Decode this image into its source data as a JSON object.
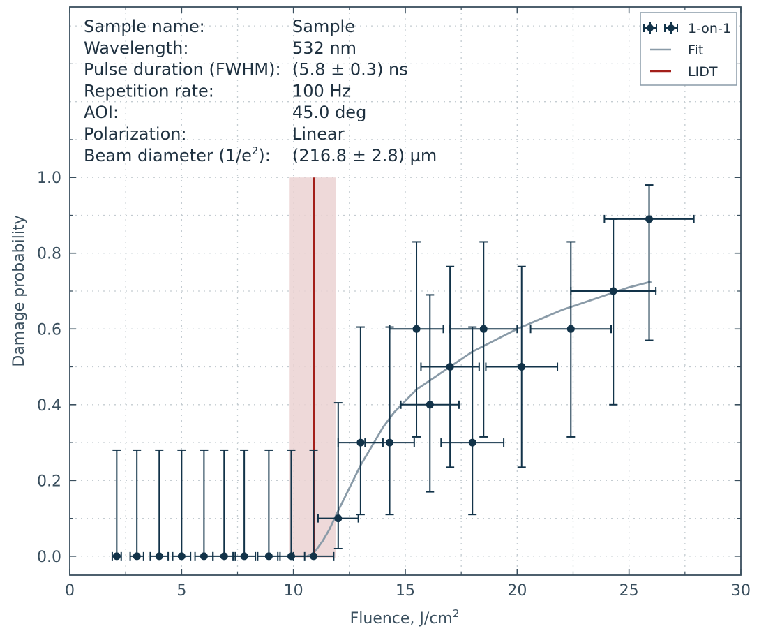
{
  "chart_data": {
    "type": "scatter",
    "xlabel": "Fluence, J/cm",
    "xlabel_sup": "2",
    "ylabel": "Damage probability",
    "xlim": [
      0,
      30
    ],
    "ylim": [
      -0.05,
      1.45
    ],
    "x_ticks": [
      0,
      5,
      10,
      15,
      20,
      25,
      30
    ],
    "y_ticks": [
      0.0,
      0.2,
      0.4,
      0.6,
      0.8,
      1.0
    ],
    "y_tick_labels": [
      "0.0",
      "0.2",
      "0.4",
      "0.6",
      "0.8",
      "1.0"
    ],
    "grid": true,
    "legend_position": "top-right",
    "colors": {
      "data": "#123349",
      "fit": "#8a9ba8",
      "lidt": "#a31f1a",
      "band": "#ebd2d2",
      "grid": "#c4ccd1",
      "axis": "#3a4f5e"
    },
    "info": [
      {
        "label": "Sample name:",
        "value": "Sample"
      },
      {
        "label": "Wavelength:",
        "value": "532 nm"
      },
      {
        "label": "Pulse duration (FWHM):",
        "value": "(5.8 ± 0.3) ns"
      },
      {
        "label": "Repetition rate:",
        "value": "100 Hz"
      },
      {
        "label": "AOI:",
        "value": "45.0 deg"
      },
      {
        "label": "Polarization:",
        "value": "Linear"
      },
      {
        "label": "Beam diameter (1/e",
        "label_sup": "2",
        "label_tail": "):",
        "value": "(216.8 ± 2.8) µm"
      }
    ],
    "legend": [
      {
        "name": "1-on-1",
        "kind": "errorbar"
      },
      {
        "name": "Fit",
        "kind": "line"
      },
      {
        "name": "LIDT",
        "kind": "line"
      }
    ],
    "lidt": {
      "value": 10.9,
      "band": [
        9.8,
        11.9
      ]
    },
    "fit": {
      "x": [
        10.6,
        10.8,
        11.0,
        11.3,
        11.6,
        12.0,
        12.5,
        13.0,
        13.5,
        14.0,
        14.5,
        15.0,
        15.5,
        16.0,
        16.5,
        17.0,
        18.0,
        19.0,
        20.0,
        21.0,
        22.0,
        23.0,
        24.0,
        25.0,
        26.0
      ],
      "y": [
        0.0,
        0.005,
        0.015,
        0.04,
        0.07,
        0.12,
        0.18,
        0.24,
        0.29,
        0.34,
        0.38,
        0.41,
        0.44,
        0.46,
        0.48,
        0.5,
        0.54,
        0.57,
        0.6,
        0.625,
        0.65,
        0.67,
        0.69,
        0.71,
        0.725
      ]
    },
    "series": [
      {
        "name": "1-on-1",
        "points": [
          {
            "x": 2.1,
            "y": 0.0,
            "xerr": 0.2,
            "yerr_low": 0.0,
            "yerr_high": 0.28
          },
          {
            "x": 3.0,
            "y": 0.0,
            "xerr": 0.3,
            "yerr_low": 0.0,
            "yerr_high": 0.28
          },
          {
            "x": 4.0,
            "y": 0.0,
            "xerr": 0.4,
            "yerr_low": 0.0,
            "yerr_high": 0.28
          },
          {
            "x": 5.0,
            "y": 0.0,
            "xerr": 0.4,
            "yerr_low": 0.0,
            "yerr_high": 0.28
          },
          {
            "x": 6.0,
            "y": 0.0,
            "xerr": 0.4,
            "yerr_low": 0.0,
            "yerr_high": 0.28
          },
          {
            "x": 6.9,
            "y": 0.0,
            "xerr": 0.5,
            "yerr_low": 0.0,
            "yerr_high": 0.28
          },
          {
            "x": 7.8,
            "y": 0.0,
            "xerr": 0.5,
            "yerr_low": 0.0,
            "yerr_high": 0.28
          },
          {
            "x": 8.9,
            "y": 0.0,
            "xerr": 0.5,
            "yerr_low": 0.0,
            "yerr_high": 0.28
          },
          {
            "x": 9.9,
            "y": 0.0,
            "xerr": 0.6,
            "yerr_low": 0.0,
            "yerr_high": 0.28
          },
          {
            "x": 10.9,
            "y": 0.0,
            "xerr": 0.9,
            "yerr_low": 0.0,
            "yerr_high": 0.28
          },
          {
            "x": 12.0,
            "y": 0.1,
            "xerr": 0.9,
            "yerr_low": 0.08,
            "yerr_high": 0.305
          },
          {
            "x": 13.0,
            "y": 0.3,
            "xerr": 1.0,
            "yerr_low": 0.19,
            "yerr_high": 0.305
          },
          {
            "x": 14.3,
            "y": 0.3,
            "xerr": 1.1,
            "yerr_low": 0.19,
            "yerr_high": 0.305
          },
          {
            "x": 15.5,
            "y": 0.6,
            "xerr": 1.2,
            "yerr_low": 0.285,
            "yerr_high": 0.23
          },
          {
            "x": 16.1,
            "y": 0.4,
            "xerr": 1.3,
            "yerr_low": 0.23,
            "yerr_high": 0.29
          },
          {
            "x": 17.0,
            "y": 0.5,
            "xerr": 1.3,
            "yerr_low": 0.265,
            "yerr_high": 0.265
          },
          {
            "x": 18.0,
            "y": 0.3,
            "xerr": 1.4,
            "yerr_low": 0.19,
            "yerr_high": 0.305
          },
          {
            "x": 18.5,
            "y": 0.6,
            "xerr": 1.5,
            "yerr_low": 0.285,
            "yerr_high": 0.23
          },
          {
            "x": 20.2,
            "y": 0.5,
            "xerr": 1.6,
            "yerr_low": 0.265,
            "yerr_high": 0.265
          },
          {
            "x": 22.4,
            "y": 0.6,
            "xerr": 1.8,
            "yerr_low": 0.285,
            "yerr_high": 0.23
          },
          {
            "x": 24.3,
            "y": 0.7,
            "xerr": 1.9,
            "yerr_low": 0.3,
            "yerr_high": 0.19
          },
          {
            "x": 25.9,
            "y": 0.89,
            "xerr": 2.0,
            "yerr_low": 0.32,
            "yerr_high": 0.09
          }
        ]
      }
    ]
  }
}
